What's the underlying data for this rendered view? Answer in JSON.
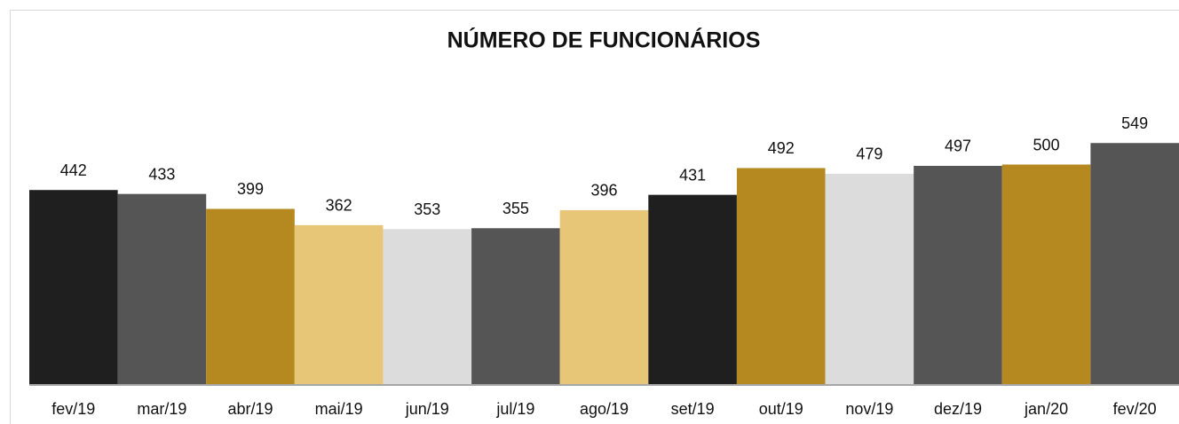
{
  "chart_data": {
    "type": "bar",
    "title": "NÚMERO DE FUNCIONÁRIOS",
    "categories": [
      "fev/19",
      "mar/19",
      "abr/19",
      "mai/19",
      "jun/19",
      "jul/19",
      "ago/19",
      "set/19",
      "out/19",
      "nov/19",
      "dez/19",
      "jan/20",
      "fev/20"
    ],
    "values": [
      442,
      433,
      399,
      362,
      353,
      355,
      396,
      431,
      492,
      479,
      497,
      500,
      549
    ],
    "colors": [
      "#1f1f1f",
      "#555555",
      "#b5891f",
      "#e8c677",
      "#dcdcdc",
      "#555555",
      "#e8c677",
      "#1f1f1f",
      "#b5891f",
      "#dcdcdc",
      "#555555",
      "#b5891f",
      "#555555"
    ],
    "ylim": [
      0,
      600
    ]
  }
}
